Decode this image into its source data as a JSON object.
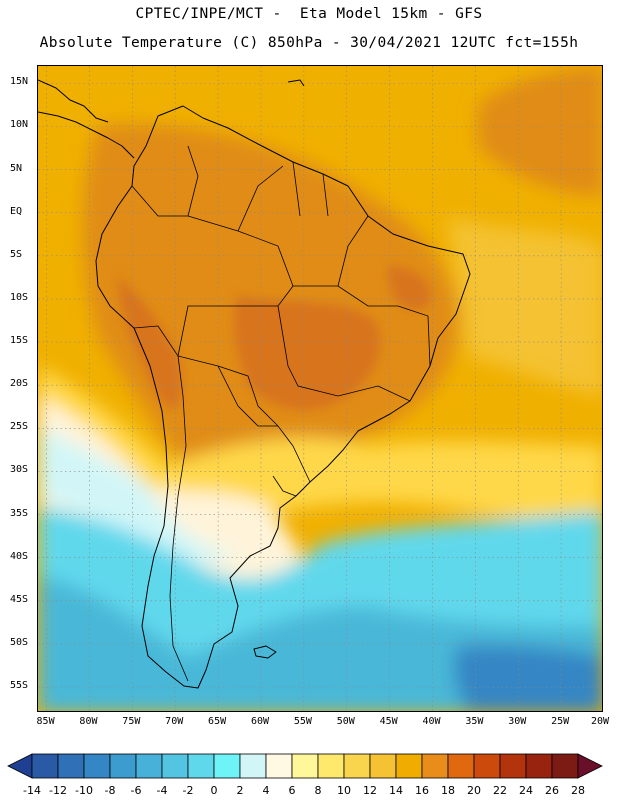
{
  "header": {
    "line1": "CPTEC/INPE/MCT -  Eta Model 15km - GFS",
    "line2": "Absolute Temperature (C) 850hPa - 30/04/2021 12UTC fct=155h"
  },
  "map": {
    "lon_range": [
      -86,
      -20
    ],
    "lat_range": [
      -58,
      17
    ],
    "lat_labels": [
      {
        "lat": 15,
        "text": "15N"
      },
      {
        "lat": 10,
        "text": "10N"
      },
      {
        "lat": 5,
        "text": "5N"
      },
      {
        "lat": 0,
        "text": "EQ"
      },
      {
        "lat": -5,
        "text": "5S"
      },
      {
        "lat": -10,
        "text": "10S"
      },
      {
        "lat": -15,
        "text": "15S"
      },
      {
        "lat": -20,
        "text": "20S"
      },
      {
        "lat": -25,
        "text": "25S"
      },
      {
        "lat": -30,
        "text": "30S"
      },
      {
        "lat": -35,
        "text": "35S"
      },
      {
        "lat": -40,
        "text": "40S"
      },
      {
        "lat": -45,
        "text": "45S"
      },
      {
        "lat": -50,
        "text": "50S"
      },
      {
        "lat": -55,
        "text": "55S"
      }
    ],
    "lon_labels": [
      {
        "lon": -85,
        "text": "85W"
      },
      {
        "lon": -80,
        "text": "80W"
      },
      {
        "lon": -75,
        "text": "75W"
      },
      {
        "lon": -70,
        "text": "70W"
      },
      {
        "lon": -65,
        "text": "65W"
      },
      {
        "lon": -60,
        "text": "60W"
      },
      {
        "lon": -55,
        "text": "55W"
      },
      {
        "lon": -50,
        "text": "50W"
      },
      {
        "lon": -45,
        "text": "45W"
      },
      {
        "lon": -40,
        "text": "40W"
      },
      {
        "lon": -35,
        "text": "35W"
      },
      {
        "lon": -30,
        "text": "30W"
      },
      {
        "lon": -25,
        "text": "25W"
      },
      {
        "lon": -20,
        "text": "20W"
      }
    ],
    "temperature_bands": [
      {
        "name": "warm-tropics",
        "color": "#f0b000"
      },
      {
        "name": "hot-interior",
        "color": "#e08c18"
      },
      {
        "name": "very-hot-core",
        "color": "#d8741c"
      },
      {
        "name": "mild-south",
        "color": "#ffd84a"
      },
      {
        "name": "cool-pampas",
        "color": "#fff4da"
      },
      {
        "name": "cold-south",
        "color": "#60d8ec"
      },
      {
        "name": "very-cold-south",
        "color": "#48b8d8"
      }
    ]
  },
  "colorbar": {
    "labels": [
      "-14",
      "-12",
      "-10",
      "-8",
      "-6",
      "-4",
      "-2",
      "0",
      "2",
      "4",
      "6",
      "8",
      "10",
      "12",
      "14",
      "16",
      "18",
      "20",
      "22",
      "24",
      "26",
      "28"
    ],
    "colors": [
      "#1f3f92",
      "#2a5aa6",
      "#2f70b6",
      "#3486c4",
      "#3c9bcf",
      "#48b1da",
      "#54c4e3",
      "#60d8ec",
      "#6ef4f6",
      "#d2f6f8",
      "#fff9e4",
      "#fff799",
      "#ffe96c",
      "#f9d54e",
      "#f4c232",
      "#f0ad00",
      "#e88c1a",
      "#e0680e",
      "#cc4a0c",
      "#b2330c",
      "#982410",
      "#7c1a14",
      "#6a0f2a"
    ]
  }
}
